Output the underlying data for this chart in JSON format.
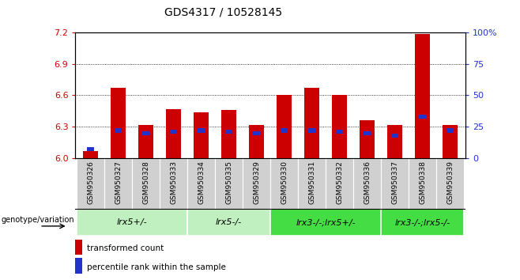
{
  "title": "GDS4317 / 10528145",
  "samples": [
    "GSM950326",
    "GSM950327",
    "GSM950328",
    "GSM950333",
    "GSM950334",
    "GSM950335",
    "GSM950329",
    "GSM950330",
    "GSM950331",
    "GSM950332",
    "GSM950336",
    "GSM950337",
    "GSM950338",
    "GSM950339"
  ],
  "red_values": [
    6.07,
    6.67,
    6.32,
    6.47,
    6.44,
    6.46,
    6.32,
    6.6,
    6.67,
    6.6,
    6.36,
    6.32,
    7.18,
    6.32
  ],
  "blue_pct": [
    7,
    22,
    20,
    21,
    22,
    21,
    20,
    22,
    22,
    21,
    20,
    18,
    33,
    22
  ],
  "ymin": 6.0,
  "ymax": 7.2,
  "y2min": 0,
  "y2max": 100,
  "yticks": [
    6.0,
    6.3,
    6.6,
    6.9,
    7.2
  ],
  "y2ticks": [
    0,
    25,
    50,
    75,
    100
  ],
  "bar_color": "#cc0000",
  "blue_color": "#2233cc",
  "group_data": [
    {
      "label": "lrx5+/-",
      "indices": [
        0,
        1,
        2,
        3
      ],
      "color": "#c0f0c0"
    },
    {
      "label": "lrx5-/-",
      "indices": [
        4,
        5,
        6
      ],
      "color": "#c0f0c0"
    },
    {
      "label": "lrx3-/-;lrx5+/-",
      "indices": [
        7,
        8,
        9,
        10
      ],
      "color": "#44dd44"
    },
    {
      "label": "lrx3-/-;lrx5-/-",
      "indices": [
        11,
        12,
        13
      ],
      "color": "#44dd44"
    }
  ],
  "legend_red": "transformed count",
  "legend_blue": "percentile rank within the sample",
  "genotype_label": "genotype/variation"
}
